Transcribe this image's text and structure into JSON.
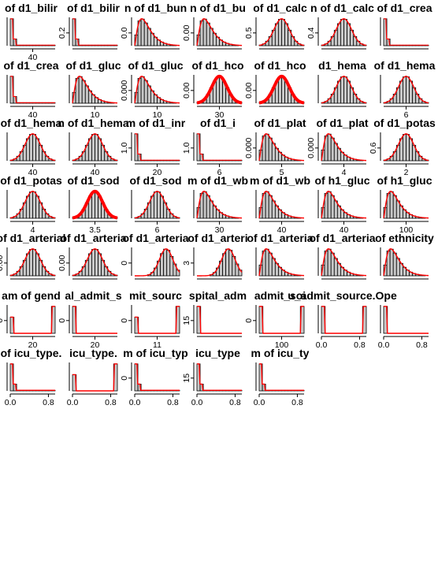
{
  "chart_data": {
    "type": "bar",
    "layout": "grid",
    "colors": {
      "background": "#ffffff",
      "bars": "#c8c8c8",
      "bar_border": "#000000",
      "density_line": "#ff0000",
      "axis": "#000000",
      "text": "#000000"
    },
    "panels": [
      {
        "title": "of d1_bilir",
        "shape": "spike",
        "peak": 0.04,
        "lw": 1.2,
        "x_ticks": [
          "40"
        ],
        "y_ticks": []
      },
      {
        "title": "of d1_bilir",
        "shape": "spike",
        "peak": 0.04,
        "lw": 1.2,
        "x_ticks": [],
        "y_ticks": [
          "0.2"
        ]
      },
      {
        "title": "n of d1_bun",
        "shape": "right",
        "peak": 0.12,
        "lw": 1.4,
        "x_ticks": [],
        "y_ticks": [
          "0.0"
        ]
      },
      {
        "title": "n of d1_bu",
        "shape": "right",
        "peak": 0.15,
        "lw": 1.4,
        "x_ticks": [],
        "y_ticks": [
          "0.00"
        ]
      },
      {
        "title": "of d1_calc",
        "shape": "normal",
        "peak": 0.55,
        "lw": 1.4,
        "x_ticks": [],
        "y_ticks": [
          "0.5"
        ]
      },
      {
        "title": "n of d1_calc",
        "shape": "normal",
        "peak": 0.55,
        "lw": 1.4,
        "x_ticks": [],
        "y_ticks": [
          "0.4"
        ]
      },
      {
        "title": "of d1_crea",
        "shape": "spike",
        "peak": 0.1,
        "lw": 1.2,
        "x_ticks": [],
        "y_ticks": []
      },
      {
        "title": "of d1_crea",
        "shape": "spike",
        "peak": 0.1,
        "lw": 1.2,
        "x_ticks": [
          "40"
        ],
        "y_ticks": []
      },
      {
        "title": "of d1_gluc",
        "shape": "right",
        "peak": 0.1,
        "lw": 1.4,
        "x_ticks": [
          "10"
        ],
        "y_ticks": []
      },
      {
        "title": "of d1_gluc",
        "shape": "right",
        "peak": 0.1,
        "lw": 1.4,
        "x_ticks": [
          "10"
        ],
        "y_ticks": [
          "0.000"
        ]
      },
      {
        "title": "of d1_hco",
        "shape": "normal",
        "peak": 0.08,
        "lw": 4,
        "x_ticks": [
          "30"
        ],
        "y_ticks": [
          "0.00"
        ]
      },
      {
        "title": "of d1_hco",
        "shape": "normal",
        "peak": 0.08,
        "lw": 4,
        "x_ticks": [],
        "y_ticks": [
          "0.00"
        ]
      },
      {
        "title": "d1_hema",
        "shape": "normal",
        "peak": 0.08,
        "lw": 1.4,
        "x_ticks": [],
        "y_ticks": []
      },
      {
        "title": "of d1_hema",
        "shape": "normal",
        "peak": 0.08,
        "lw": 1.4,
        "x_ticks": [
          "6"
        ],
        "y_ticks": []
      },
      {
        "title": "of d1_hema",
        "shape": "normal",
        "peak": 0.1,
        "lw": 1.4,
        "x_ticks": [
          "40"
        ],
        "y_ticks": []
      },
      {
        "title": "n of d1_hema",
        "shape": "normal",
        "peak": 0.1,
        "lw": 1.4,
        "x_ticks": [
          "40"
        ],
        "y_ticks": []
      },
      {
        "title": "m of d1_inr",
        "shape": "spike",
        "peak": 1,
        "lw": 1.2,
        "x_ticks": [
          "20"
        ],
        "y_ticks": [
          "1.0"
        ]
      },
      {
        "title": "of d1_i",
        "shape": "spike",
        "peak": 1,
        "lw": 1.2,
        "x_ticks": [
          "6"
        ],
        "y_ticks": [
          "1.0"
        ]
      },
      {
        "title": "of d1_plat",
        "shape": "right",
        "peak": 0.004,
        "lw": 1.4,
        "x_ticks": [
          "5"
        ],
        "y_ticks": [
          "0.000"
        ]
      },
      {
        "title": "of d1_plat",
        "shape": "right",
        "peak": 0.004,
        "lw": 1.4,
        "x_ticks": [
          "4"
        ],
        "y_ticks": [
          "0.000"
        ]
      },
      {
        "title": "of d1_potas",
        "shape": "normal",
        "peak": 0.6,
        "lw": 1.4,
        "x_ticks": [
          "2"
        ],
        "y_ticks": [
          "0.6"
        ]
      },
      {
        "title": "of d1_potas",
        "shape": "normal",
        "peak": 0.6,
        "lw": 1.4,
        "x_ticks": [
          "4"
        ],
        "y_ticks": []
      },
      {
        "title": "of d1_sod",
        "shape": "normal",
        "peak": 0.08,
        "lw": 4,
        "x_ticks": [
          "3.5"
        ],
        "y_ticks": []
      },
      {
        "title": "of d1_sod",
        "shape": "normal",
        "peak": 0.08,
        "lw": 1.4,
        "x_ticks": [
          "6"
        ],
        "y_ticks": []
      },
      {
        "title": "m of d1_wb",
        "shape": "right",
        "peak": 0.1,
        "lw": 1.4,
        "x_ticks": [
          "30"
        ],
        "y_ticks": []
      },
      {
        "title": "m of d1_wb",
        "shape": "right",
        "peak": 0.1,
        "lw": 1.4,
        "x_ticks": [
          "40"
        ],
        "y_ticks": []
      },
      {
        "title": "of h1_gluc",
        "shape": "right",
        "peak": 0.1,
        "lw": 1.4,
        "x_ticks": [
          "40"
        ],
        "y_ticks": []
      },
      {
        "title": "of h1_gluc",
        "shape": "right",
        "peak": 0.1,
        "lw": 1.4,
        "x_ticks": [
          "100"
        ],
        "y_ticks": []
      },
      {
        "title": "of d1_arterial",
        "shape": "normal",
        "peak": 0.03,
        "lw": 1.4,
        "x_ticks": [],
        "y_ticks": [
          "0.00"
        ]
      },
      {
        "title": "of d1_arteria",
        "shape": "normal",
        "peak": 0.03,
        "lw": 1.4,
        "x_ticks": [],
        "y_ticks": [
          "0.00"
        ]
      },
      {
        "title": "of d1_arteria",
        "shape": "left",
        "peak": 5,
        "lw": 1.4,
        "x_ticks": [],
        "y_ticks": [
          "0"
        ]
      },
      {
        "title": "of d1_arteri",
        "shape": "left",
        "peak": 3,
        "lw": 1.4,
        "x_ticks": [],
        "y_ticks": [
          "3"
        ]
      },
      {
        "title": "of d1_arteria",
        "shape": "right",
        "peak": 0.01,
        "lw": 1.4,
        "x_ticks": [],
        "y_ticks": []
      },
      {
        "title": "of d1_arteria",
        "shape": "right",
        "peak": 0.01,
        "lw": 1.4,
        "x_ticks": [],
        "y_ticks": []
      },
      {
        "title": "of ethnicity",
        "shape": "right",
        "peak": 5,
        "lw": 1.4,
        "x_ticks": [],
        "y_ticks": []
      },
      {
        "title": "am of gend",
        "shape": "ends",
        "peak": 15,
        "lw": 1.4,
        "x_ticks": [
          "20"
        ],
        "y_ticks": [
          "0"
        ]
      },
      {
        "title": "al_admit_s",
        "shape": "single-left",
        "peak": 6,
        "lw": 1.4,
        "x_ticks": [
          "20"
        ],
        "y_ticks": [
          "0"
        ]
      },
      {
        "title": "mit_sourc",
        "shape": "ends",
        "peak": 15,
        "lw": 1.4,
        "x_ticks": [
          "11"
        ],
        "y_ticks": [
          "0"
        ]
      },
      {
        "title": "spital_adm",
        "shape": "left-low",
        "peak": 15,
        "lw": 1.4,
        "x_ticks": [],
        "y_ticks": [
          "15"
        ]
      },
      {
        "title": "admit_soi",
        "shape": "ends-low",
        "peak": 6,
        "lw": 1.4,
        "x_ticks": [
          "100"
        ],
        "y_ticks": [
          "0"
        ]
      },
      {
        "title": "u_admit_source.Ope",
        "shape": "ends-low",
        "peak": 6,
        "lw": 1.4,
        "x_ticks": [
          "0.0",
          "0.8"
        ],
        "y_ticks": []
      },
      {
        "title": "",
        "shape": "left-low",
        "peak": 15,
        "lw": 1.4,
        "x_ticks": [
          "0.0",
          "0.8"
        ],
        "y_ticks": []
      },
      {
        "title": "of icu_type.",
        "shape": "spike",
        "peak": 15,
        "lw": 1.4,
        "x_ticks": [
          "0.0",
          "0.8"
        ],
        "y_ticks": []
      },
      {
        "title": "icu_type.",
        "shape": "ends",
        "peak": 15,
        "lw": 1.4,
        "x_ticks": [
          "0.0",
          "0.8"
        ],
        "y_ticks": []
      },
      {
        "title": "m of icu_typ",
        "shape": "spike",
        "peak": 15,
        "lw": 1.4,
        "x_ticks": [
          "0.0",
          "0.8"
        ],
        "y_ticks": [
          "0"
        ]
      },
      {
        "title": "icu_type",
        "shape": "spike",
        "peak": 15,
        "lw": 1.4,
        "x_ticks": [
          "0.0",
          "0.8"
        ],
        "y_ticks": [
          "15"
        ]
      },
      {
        "title": "m of icu_ty",
        "shape": "spike",
        "peak": 15,
        "lw": 1.4,
        "x_ticks": [
          "0.0",
          "0.8"
        ],
        "y_ticks": []
      }
    ]
  }
}
